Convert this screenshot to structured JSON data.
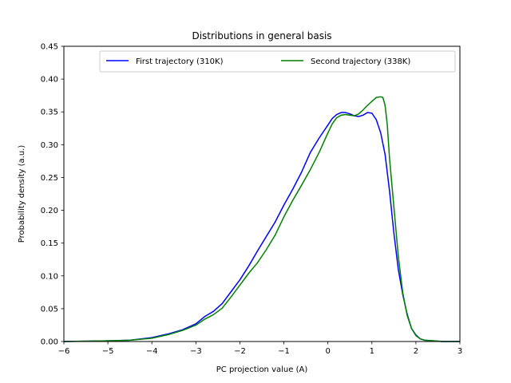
{
  "chart_data": {
    "type": "line",
    "title": "Distributions in general basis",
    "xlabel": "PC projection value (A)",
    "ylabel": "Probability density (a.u.)",
    "xlim": [
      -6,
      3
    ],
    "ylim": [
      0,
      0.45
    ],
    "xticks": [
      -6,
      -5,
      -4,
      -3,
      -2,
      -1,
      0,
      1,
      2,
      3
    ],
    "xtick_labels": [
      "−6",
      "−5",
      "−4",
      "−3",
      "−2",
      "−1",
      "0",
      "1",
      "2",
      "3"
    ],
    "yticks": [
      0,
      0.05,
      0.1,
      0.15,
      0.2,
      0.25,
      0.3,
      0.35,
      0.4,
      0.45
    ],
    "ytick_labels": [
      "0.00",
      "0.05",
      "0.10",
      "0.15",
      "0.20",
      "0.25",
      "0.30",
      "0.35",
      "0.40",
      "0.45"
    ],
    "grid": false,
    "legend_position": "top-right",
    "legend_columns": 2,
    "series": [
      {
        "name": "First trajectory (310K)",
        "color": "#0000ff",
        "x": [
          -6.0,
          -5.0,
          -4.5,
          -4.0,
          -3.6,
          -3.3,
          -3.0,
          -2.8,
          -2.6,
          -2.4,
          -2.2,
          -2.0,
          -1.8,
          -1.6,
          -1.4,
          -1.2,
          -1.0,
          -0.8,
          -0.6,
          -0.4,
          -0.2,
          0.0,
          0.1,
          0.2,
          0.3,
          0.4,
          0.5,
          0.6,
          0.7,
          0.8,
          0.9,
          1.0,
          1.1,
          1.2,
          1.3,
          1.4,
          1.5,
          1.6,
          1.7,
          1.8,
          1.9,
          2.0,
          2.1,
          2.2,
          2.4,
          2.6,
          3.0
        ],
        "y": [
          0.0,
          0.001,
          0.002,
          0.006,
          0.012,
          0.018,
          0.027,
          0.038,
          0.046,
          0.058,
          0.076,
          0.094,
          0.115,
          0.138,
          0.16,
          0.182,
          0.208,
          0.232,
          0.258,
          0.288,
          0.31,
          0.33,
          0.34,
          0.346,
          0.349,
          0.349,
          0.347,
          0.344,
          0.343,
          0.345,
          0.349,
          0.348,
          0.338,
          0.318,
          0.285,
          0.23,
          0.165,
          0.11,
          0.072,
          0.042,
          0.02,
          0.01,
          0.004,
          0.002,
          0.001,
          0.0,
          0.0
        ]
      },
      {
        "name": "Second trajectory (338K)",
        "color": "#008000",
        "x": [
          -6.0,
          -5.0,
          -4.5,
          -4.0,
          -3.6,
          -3.3,
          -3.0,
          -2.8,
          -2.6,
          -2.4,
          -2.2,
          -2.0,
          -1.8,
          -1.6,
          -1.4,
          -1.2,
          -1.0,
          -0.8,
          -0.6,
          -0.4,
          -0.2,
          0.0,
          0.1,
          0.2,
          0.3,
          0.4,
          0.5,
          0.6,
          0.7,
          0.8,
          0.9,
          1.0,
          1.1,
          1.2,
          1.25,
          1.3,
          1.35,
          1.4,
          1.5,
          1.6,
          1.7,
          1.8,
          1.9,
          2.0,
          2.1,
          2.2,
          2.4,
          2.6,
          3.0
        ],
        "y": [
          0.0,
          0.001,
          0.002,
          0.005,
          0.011,
          0.017,
          0.025,
          0.034,
          0.041,
          0.051,
          0.068,
          0.086,
          0.104,
          0.12,
          0.14,
          0.162,
          0.19,
          0.215,
          0.238,
          0.262,
          0.288,
          0.318,
          0.332,
          0.341,
          0.345,
          0.346,
          0.345,
          0.344,
          0.347,
          0.353,
          0.36,
          0.366,
          0.372,
          0.373,
          0.372,
          0.36,
          0.33,
          0.28,
          0.205,
          0.13,
          0.075,
          0.04,
          0.02,
          0.009,
          0.004,
          0.002,
          0.001,
          0.0,
          0.0
        ]
      }
    ]
  }
}
